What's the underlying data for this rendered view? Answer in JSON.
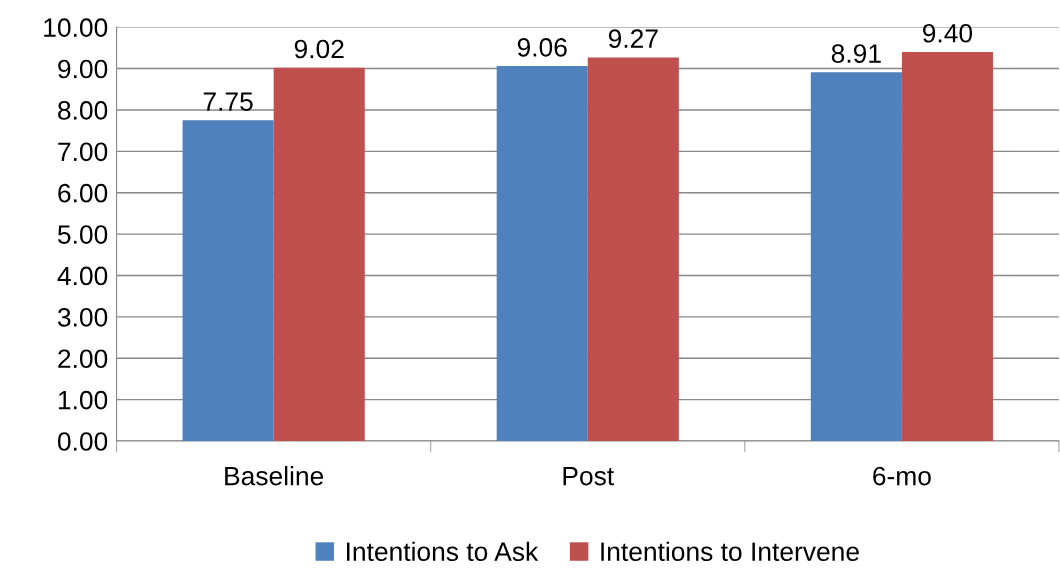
{
  "chart_data": {
    "type": "bar",
    "categories": [
      "Baseline",
      "Post",
      "6-mo"
    ],
    "series": [
      {
        "name": "Intentions to Ask",
        "color": "#4f81bd",
        "values": [
          7.75,
          9.06,
          8.91
        ]
      },
      {
        "name": "Intentions to Intervene",
        "color": "#c0504d",
        "values": [
          9.02,
          9.27,
          9.4
        ]
      }
    ],
    "ylim": [
      0,
      10
    ],
    "yticks": [
      {
        "value": 0,
        "label": "0.00"
      },
      {
        "value": 1,
        "label": "1.00"
      },
      {
        "value": 2,
        "label": "2.00"
      },
      {
        "value": 3,
        "label": "3.00"
      },
      {
        "value": 4,
        "label": "4.00"
      },
      {
        "value": 5,
        "label": "5.00"
      },
      {
        "value": 6,
        "label": "6.00"
      },
      {
        "value": 7,
        "label": "7.00"
      },
      {
        "value": 8,
        "label": "8.00"
      },
      {
        "value": 9,
        "label": "9.00"
      },
      {
        "value": 10,
        "label": "10.00"
      }
    ],
    "value_labels": [
      [
        "7.75",
        "9.06",
        "8.91"
      ],
      [
        "9.02",
        "9.27",
        "9.40"
      ]
    ],
    "grid": "y",
    "legend": "bottom"
  }
}
